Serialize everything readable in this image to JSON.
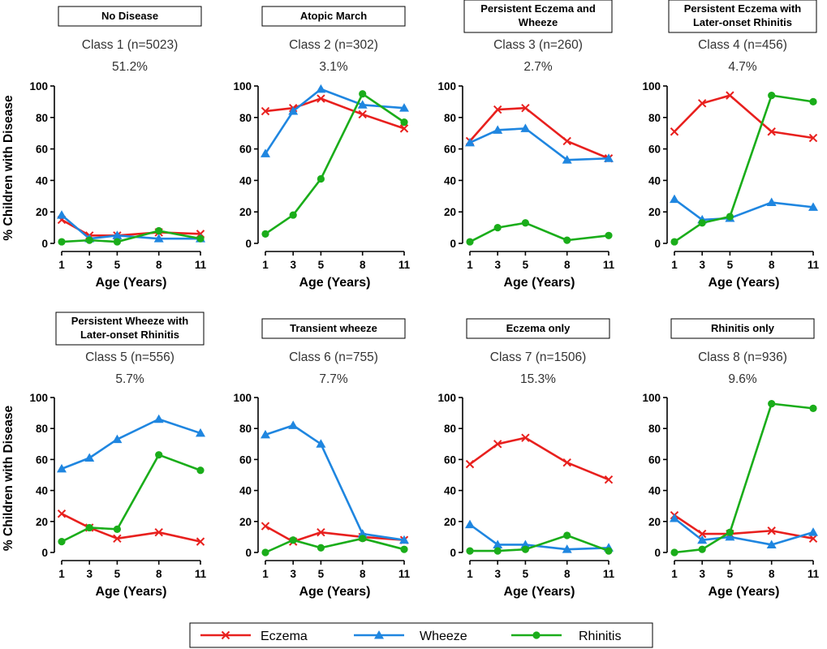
{
  "chart_data": [
    {
      "type": "line",
      "title_lines": [
        "No Disease"
      ],
      "class_label": "Class 1 (n=5023)",
      "percent": "51.2%",
      "x": [
        1,
        3,
        5,
        8,
        11
      ],
      "ylim": [
        0,
        100
      ],
      "yticks": [
        0,
        20,
        40,
        60,
        80,
        100
      ],
      "series": [
        {
          "name": "Eczema",
          "values": [
            15,
            5,
            5,
            7,
            6
          ]
        },
        {
          "name": "Wheeze",
          "values": [
            18,
            3,
            5,
            3,
            3
          ]
        },
        {
          "name": "Rhinitis",
          "values": [
            1,
            2,
            1,
            8,
            3
          ]
        }
      ]
    },
    {
      "type": "line",
      "title_lines": [
        "Atopic March"
      ],
      "class_label": "Class 2 (n=302)",
      "percent": "3.1%",
      "x": [
        1,
        3,
        5,
        8,
        11
      ],
      "ylim": [
        0,
        100
      ],
      "yticks": [
        0,
        20,
        40,
        60,
        80,
        100
      ],
      "series": [
        {
          "name": "Eczema",
          "values": [
            84,
            86,
            92,
            82,
            73
          ]
        },
        {
          "name": "Wheeze",
          "values": [
            57,
            84,
            98,
            88,
            86
          ]
        },
        {
          "name": "Rhinitis",
          "values": [
            6,
            18,
            41,
            95,
            77
          ]
        }
      ]
    },
    {
      "type": "line",
      "title_lines": [
        "Persistent Eczema and",
        "Wheeze"
      ],
      "class_label": "Class 3 (n=260)",
      "percent": "2.7%",
      "x": [
        1,
        3,
        5,
        8,
        11
      ],
      "ylim": [
        0,
        100
      ],
      "yticks": [
        0,
        20,
        40,
        60,
        80,
        100
      ],
      "series": [
        {
          "name": "Eczema",
          "values": [
            65,
            85,
            86,
            65,
            54
          ]
        },
        {
          "name": "Wheeze",
          "values": [
            64,
            72,
            73,
            53,
            54
          ]
        },
        {
          "name": "Rhinitis",
          "values": [
            1,
            10,
            13,
            2,
            5
          ]
        }
      ]
    },
    {
      "type": "line",
      "title_lines": [
        "Persistent Eczema with",
        "Later-onset Rhinitis"
      ],
      "class_label": "Class 4 (n=456)",
      "percent": "4.7%",
      "x": [
        1,
        3,
        5,
        8,
        11
      ],
      "ylim": [
        0,
        100
      ],
      "yticks": [
        0,
        20,
        40,
        60,
        80,
        100
      ],
      "series": [
        {
          "name": "Eczema",
          "values": [
            71,
            89,
            94,
            71,
            67
          ]
        },
        {
          "name": "Wheeze",
          "values": [
            28,
            15,
            16,
            26,
            23
          ]
        },
        {
          "name": "Rhinitis",
          "values": [
            1,
            13,
            17,
            94,
            90
          ]
        }
      ]
    },
    {
      "type": "line",
      "title_lines": [
        "Persistent Wheeze with",
        "Later-onset Rhinitis"
      ],
      "class_label": "Class 5 (n=556)",
      "percent": "5.7%",
      "x": [
        1,
        3,
        5,
        8,
        11
      ],
      "ylim": [
        0,
        100
      ],
      "yticks": [
        0,
        20,
        40,
        60,
        80,
        100
      ],
      "series": [
        {
          "name": "Eczema",
          "values": [
            25,
            16,
            9,
            13,
            7
          ]
        },
        {
          "name": "Wheeze",
          "values": [
            54,
            61,
            73,
            86,
            77
          ]
        },
        {
          "name": "Rhinitis",
          "values": [
            7,
            16,
            15,
            63,
            53
          ]
        }
      ]
    },
    {
      "type": "line",
      "title_lines": [
        "Transient wheeze"
      ],
      "class_label": "Class 6 (n=755)",
      "percent": "7.7%",
      "x": [
        1,
        3,
        5,
        8,
        11
      ],
      "ylim": [
        0,
        100
      ],
      "yticks": [
        0,
        20,
        40,
        60,
        80,
        100
      ],
      "series": [
        {
          "name": "Eczema",
          "values": [
            17,
            7,
            13,
            10,
            8
          ]
        },
        {
          "name": "Wheeze",
          "values": [
            76,
            82,
            70,
            12,
            8
          ]
        },
        {
          "name": "Rhinitis",
          "values": [
            0,
            8,
            3,
            9,
            2
          ]
        }
      ]
    },
    {
      "type": "line",
      "title_lines": [
        "Eczema only"
      ],
      "class_label": "Class 7 (n=1506)",
      "percent": "15.3%",
      "x": [
        1,
        3,
        5,
        8,
        11
      ],
      "ylim": [
        0,
        100
      ],
      "yticks": [
        0,
        20,
        40,
        60,
        80,
        100
      ],
      "series": [
        {
          "name": "Eczema",
          "values": [
            57,
            70,
            74,
            58,
            47
          ]
        },
        {
          "name": "Wheeze",
          "values": [
            18,
            5,
            5,
            2,
            3
          ]
        },
        {
          "name": "Rhinitis",
          "values": [
            1,
            1,
            2,
            11,
            1
          ]
        }
      ]
    },
    {
      "type": "line",
      "title_lines": [
        "Rhinitis only"
      ],
      "class_label": "Class 8 (n=936)",
      "percent": "9.6%",
      "x": [
        1,
        3,
        5,
        8,
        11
      ],
      "ylim": [
        0,
        100
      ],
      "yticks": [
        0,
        20,
        40,
        60,
        80,
        100
      ],
      "series": [
        {
          "name": "Eczema",
          "values": [
            24,
            12,
            12,
            14,
            9
          ]
        },
        {
          "name": "Wheeze",
          "values": [
            22,
            8,
            10,
            5,
            13
          ]
        },
        {
          "name": "Rhinitis",
          "values": [
            0,
            2,
            13,
            96,
            93
          ]
        }
      ]
    }
  ],
  "axes": {
    "xlabel": "Age (Years)",
    "ylabel": "% Children with Disease"
  },
  "legend": [
    {
      "name": "Eczema",
      "marker": "x",
      "color": "#e8201e"
    },
    {
      "name": "Wheeze",
      "marker": "triangle",
      "color": "#1f86e0"
    },
    {
      "name": "Rhinitis",
      "marker": "circle",
      "color": "#1aad1a"
    }
  ]
}
